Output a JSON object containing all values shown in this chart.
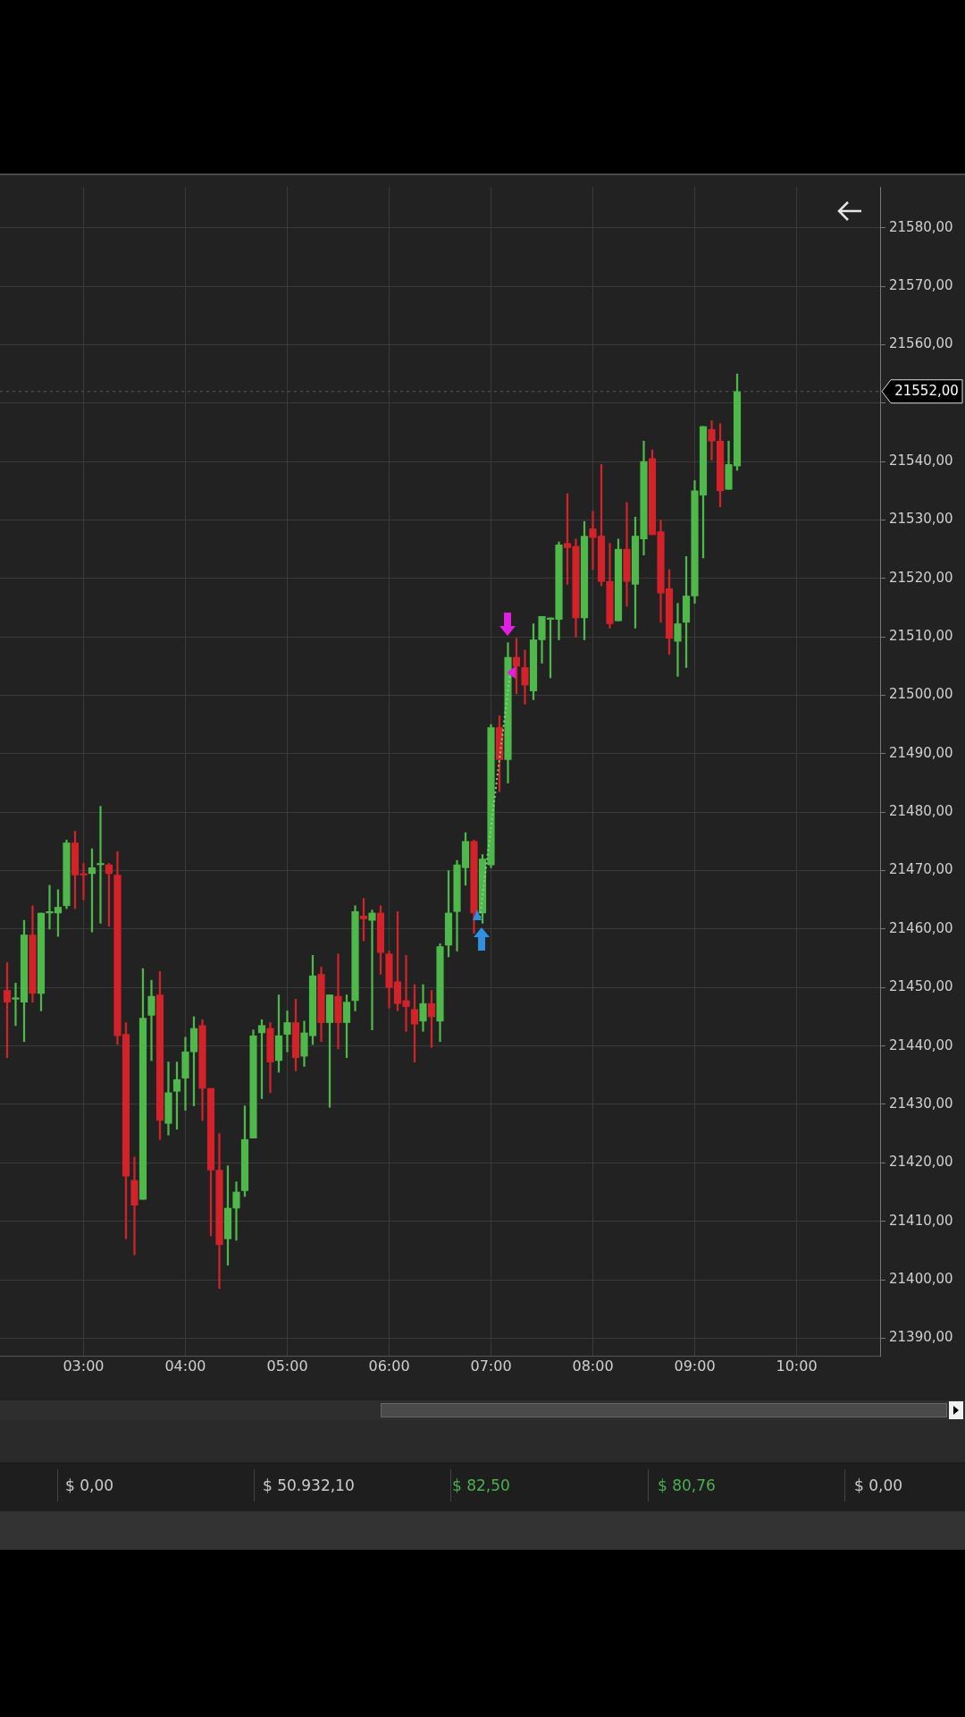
{
  "chart_data": {
    "type": "candlestick",
    "x": [
      2.25,
      2.3333,
      2.4167,
      2.5,
      2.5833,
      2.6667,
      2.75,
      2.8333,
      2.9167,
      3,
      3.0833,
      3.1667,
      3.25,
      3.3333,
      3.4167,
      3.5,
      3.5833,
      3.6667,
      3.75,
      3.8333,
      3.9167,
      4,
      4.0833,
      4.1667,
      4.25,
      4.3333,
      4.4167,
      4.5,
      4.5833,
      4.6667,
      4.75,
      4.8333,
      4.9167,
      5,
      5.0833,
      5.1667,
      5.25,
      5.3333,
      5.4167,
      5.5,
      5.5833,
      5.6667,
      5.75,
      5.8333,
      5.9167,
      6,
      6.0833,
      6.1667,
      6.25,
      6.3333,
      6.4167,
      6.5,
      6.5833,
      6.6667,
      6.75,
      6.8333,
      6.9167,
      7,
      7.0833,
      7.1667,
      7.25,
      7.3333,
      7.4167,
      7.5,
      7.5833,
      7.6667,
      7.75,
      7.8333,
      7.9167,
      8,
      8.0833,
      8.1667,
      8.25,
      8.3333,
      8.4167,
      8.5,
      8.5833,
      8.6667,
      8.75,
      8.8333,
      8.9167,
      9,
      9.0833,
      9.1667,
      9.25,
      9.3333,
      9.4167
    ],
    "ohlc": [
      [
        21449.5,
        21454.25,
        21438,
        21447.5
      ],
      [
        21448,
        21450.75,
        21443.5,
        21448.25
      ],
      [
        21447.5,
        21461.5,
        21440.75,
        21459
      ],
      [
        21459,
        21464,
        21447.5,
        21449
      ],
      [
        21449,
        21462.75,
        21446,
        21462.75
      ],
      [
        21462.75,
        21467.5,
        21460,
        21463
      ],
      [
        21462.75,
        21466.75,
        21458.75,
        21463.75
      ],
      [
        21464,
        21475.25,
        21463.5,
        21474.75
      ],
      [
        21474.75,
        21476.75,
        21463.5,
        21469.25
      ],
      [
        21469.5,
        21471.25,
        21465,
        21469.25
      ],
      [
        21469.5,
        21473.75,
        21459.5,
        21470.5
      ],
      [
        21471,
        21481,
        21461,
        21471.25
      ],
      [
        21471,
        21471.25,
        21460.5,
        21469.5
      ],
      [
        21469.25,
        21473.25,
        21440.25,
        21441.75
      ],
      [
        21442,
        21444,
        21407,
        21417.75
      ],
      [
        21417,
        21421,
        21404.25,
        21412.75
      ],
      [
        21413.75,
        21453.25,
        21413.75,
        21444.75
      ],
      [
        21445.25,
        21451.25,
        21437.5,
        21448.5
      ],
      [
        21448.75,
        21452.75,
        21424,
        21427.25
      ],
      [
        21426.75,
        21437.25,
        21424.75,
        21432
      ],
      [
        21432.25,
        21437.25,
        21425.75,
        21434.25
      ],
      [
        21434.5,
        21441.5,
        21429,
        21439
      ],
      [
        21439,
        21445,
        21429.75,
        21443
      ],
      [
        21443.5,
        21444.5,
        21427.25,
        21432.75
      ],
      [
        21432.75,
        21432.75,
        21407.5,
        21418.75
      ],
      [
        21418.75,
        21425,
        21398.5,
        21406
      ],
      [
        21407,
        21419.5,
        21402.5,
        21412.25
      ],
      [
        21412.25,
        21416.75,
        21406.75,
        21415
      ],
      [
        21415.25,
        21429.75,
        21414.25,
        21424
      ],
      [
        21424.25,
        21442.75,
        21424.25,
        21441.75
      ],
      [
        21442.25,
        21444.5,
        21431,
        21443.5
      ],
      [
        21443,
        21444,
        21432,
        21437.25
      ],
      [
        21437.5,
        21448.75,
        21435.5,
        21441.75
      ],
      [
        21442,
        21446,
        21439,
        21444
      ],
      [
        21444,
        21448,
        21435.75,
        21438
      ],
      [
        21438.25,
        21444.25,
        21436.5,
        21442.25
      ],
      [
        21441.75,
        21455.5,
        21440.25,
        21452
      ],
      [
        21452.25,
        21453.5,
        21440.75,
        21444
      ],
      [
        21444,
        21448.75,
        21429.5,
        21448.75
      ],
      [
        21448.5,
        21455.75,
        21439.5,
        21444
      ],
      [
        21444,
        21448.75,
        21438,
        21447.5
      ],
      [
        21447.75,
        21464,
        21446,
        21463
      ],
      [
        21462.25,
        21465.25,
        21458,
        21461.75
      ],
      [
        21461.5,
        21463.25,
        21442.75,
        21462.75
      ],
      [
        21462.75,
        21464,
        21452.25,
        21456
      ],
      [
        21455.75,
        21456.25,
        21446.5,
        21450
      ],
      [
        21451,
        21463,
        21446,
        21447.25
      ],
      [
        21447.75,
        21455.5,
        21442.5,
        21446.75
      ],
      [
        21446.25,
        21450.5,
        21437.25,
        21443.75
      ],
      [
        21444.25,
        21450.5,
        21442.5,
        21447.25
      ],
      [
        21447.25,
        21449.5,
        21439.75,
        21445
      ],
      [
        21444.25,
        21457.5,
        21440.75,
        21457
      ],
      [
        21457.25,
        21470,
        21455.25,
        21462.75
      ],
      [
        21463,
        21471.75,
        21456.25,
        21471
      ],
      [
        21470.5,
        21476.5,
        21467.5,
        21475
      ],
      [
        21475,
        21475.25,
        21459.25,
        21462.75
      ],
      [
        21462.75,
        21472.75,
        21461,
        21472
      ],
      [
        21471,
        21495,
        21470.5,
        21494.5
      ],
      [
        21494.5,
        21496.5,
        21483.5,
        21489
      ],
      [
        21489,
        21509,
        21485,
        21506.5
      ],
      [
        21506.5,
        21509.75,
        21500.25,
        21505
      ],
      [
        21504.75,
        21507.75,
        21498.5,
        21501.75
      ],
      [
        21500.75,
        21512.25,
        21499.25,
        21509.5
      ],
      [
        21509.5,
        21513.5,
        21505.5,
        21513.5
      ],
      [
        21513,
        21513.25,
        21503,
        21513.25
      ],
      [
        21513,
        21526.25,
        21509.5,
        21525.75
      ],
      [
        21526,
        21534.5,
        21519,
        21525.25
      ],
      [
        21525.5,
        21526.75,
        21510,
        21513.25
      ],
      [
        21513.25,
        21529.75,
        21509.5,
        21527.25
      ],
      [
        21528.5,
        21531.5,
        21521.5,
        21527
      ],
      [
        21527.25,
        21539.5,
        21518.75,
        21519.5
      ],
      [
        21519.5,
        21526,
        21511.5,
        21512.25
      ],
      [
        21512.75,
        21526.75,
        21512.75,
        21525
      ],
      [
        21525,
        21533,
        21515.25,
        21519.5
      ],
      [
        21519,
        21530.5,
        21511.5,
        21527.25
      ],
      [
        21526.75,
        21543.5,
        21524,
        21540
      ],
      [
        21540.5,
        21542,
        21527.5,
        21527.5
      ],
      [
        21528,
        21530,
        21512.5,
        21517.5
      ],
      [
        21518.25,
        21521.5,
        21507,
        21509.75
      ],
      [
        21509.25,
        21515.75,
        21503.25,
        21512.25
      ],
      [
        21512.5,
        21523.75,
        21504.75,
        21517
      ],
      [
        21517,
        21536.75,
        21515.75,
        21535
      ],
      [
        21534.25,
        21546,
        21523.5,
        21546
      ],
      [
        21545.5,
        21547,
        21540.25,
        21543.5
      ],
      [
        21543.5,
        21546.5,
        21532.25,
        21535
      ],
      [
        21535.25,
        21543.5,
        21535.25,
        21539.5
      ],
      [
        21539.25,
        21555,
        21538.5,
        21552
      ]
    ],
    "colors": [
      "#d3222a",
      "#4fb84a",
      "#4fb84a",
      "#d3222a",
      "#4fb84a",
      "#4fb84a",
      "#4fb84a",
      "#4fb84a",
      "#d3222a",
      "#d3222a",
      "#4fb84a",
      "#4fb84a",
      "#d3222a",
      "#d3222a",
      "#d3222a",
      "#d3222a",
      "#4fb84a",
      "#4fb84a",
      "#d3222a",
      "#4fb84a",
      "#4fb84a",
      "#4fb84a",
      "#4fb84a",
      "#d3222a",
      "#d3222a",
      "#d3222a",
      "#4fb84a",
      "#4fb84a",
      "#4fb84a",
      "#4fb84a",
      "#4fb84a",
      "#d3222a",
      "#4fb84a",
      "#4fb84a",
      "#d3222a",
      "#4fb84a",
      "#4fb84a",
      "#d3222a",
      "#4fb84a",
      "#d3222a",
      "#4fb84a",
      "#4fb84a",
      "#d3222a",
      "#4fb84a",
      "#d3222a",
      "#d3222a",
      "#d3222a",
      "#d3222a",
      "#d3222a",
      "#4fb84a",
      "#d3222a",
      "#4fb84a",
      "#4fb84a",
      "#4fb84a",
      "#4fb84a",
      "#d3222a",
      "#4fb84a",
      "#4fb84a",
      "#d3222a",
      "#4fb84a",
      "#d3222a",
      "#d3222a",
      "#4fb84a",
      "#4fb84a",
      "#4fb84a",
      "#4fb84a",
      "#d3222a",
      "#d3222a",
      "#4fb84a",
      "#d3222a",
      "#d3222a",
      "#d3222a",
      "#4fb84a",
      "#d3222a",
      "#4fb84a",
      "#4fb84a",
      "#d3222a",
      "#d3222a",
      "#d3222a",
      "#4fb84a",
      "#4fb84a",
      "#4fb84a",
      "#4fb84a",
      "#d3222a",
      "#d3222a",
      "#4fb84a",
      "#4fb84a"
    ],
    "xlim": [
      2.18,
      10.82
    ],
    "xticks": [
      {
        "value": 3,
        "label": "03:00"
      },
      {
        "value": 4,
        "label": "04:00"
      },
      {
        "value": 5,
        "label": "05:00"
      },
      {
        "value": 6,
        "label": "06:00"
      },
      {
        "value": 7,
        "label": "07:00"
      },
      {
        "value": 8,
        "label": "08:00"
      },
      {
        "value": 9,
        "label": "09:00"
      },
      {
        "value": 10,
        "label": "10:00"
      }
    ],
    "ylim": [
      21387,
      21587
    ],
    "yticks": [
      {
        "value": 21390,
        "label": "21390,00"
      },
      {
        "value": 21400,
        "label": "21400,00"
      },
      {
        "value": 21410,
        "label": "21410,00"
      },
      {
        "value": 21420,
        "label": "21420,00"
      },
      {
        "value": 21430,
        "label": "21430,00"
      },
      {
        "value": 21440,
        "label": "21440,00"
      },
      {
        "value": 21450,
        "label": "21450,00"
      },
      {
        "value": 21460,
        "label": "21460,00"
      },
      {
        "value": 21470,
        "label": "21470,00"
      },
      {
        "value": 21480,
        "label": "21480,00"
      },
      {
        "value": 21490,
        "label": "21490,00"
      },
      {
        "value": 21500,
        "label": "21500,00"
      },
      {
        "value": 21510,
        "label": "21510,00"
      },
      {
        "value": 21520,
        "label": "21520,00"
      },
      {
        "value": 21530,
        "label": "21530,00"
      },
      {
        "value": 21540,
        "label": "21540,00"
      },
      {
        "value": 21550,
        "label": null
      },
      {
        "value": 21560,
        "label": "21560,00"
      },
      {
        "value": 21570,
        "label": "21570,00"
      },
      {
        "value": 21580,
        "label": "21580,00"
      }
    ],
    "ref_lines": [
      {
        "axis": "y",
        "value": 21552,
        "label": "21552,00"
      }
    ],
    "grid": true,
    "annotations": [
      "$ 0,00",
      "$ 50.932,10",
      "$ 82,50",
      "$ 80,76",
      "$ 0,00"
    ]
  }
}
